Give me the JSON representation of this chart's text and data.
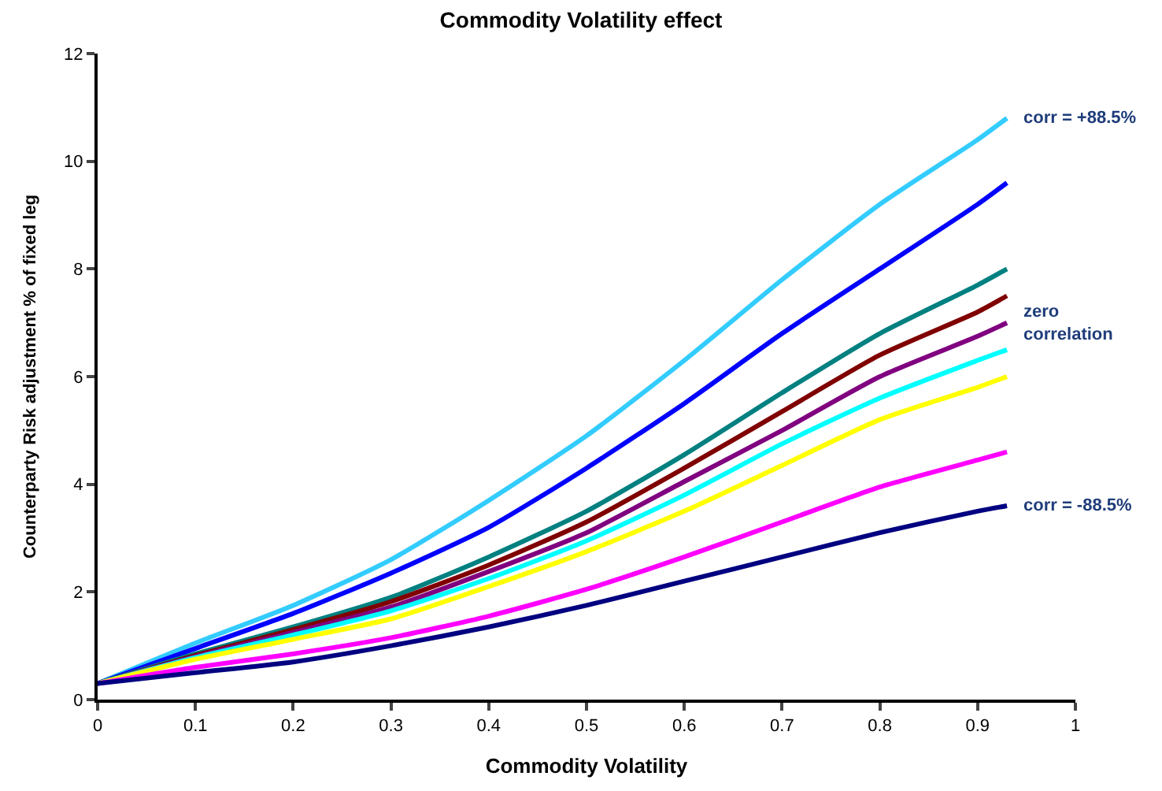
{
  "chart_data": {
    "type": "line",
    "title": "Commodity Volatility effect",
    "xlabel": "Commodity Volatility",
    "ylabel": "Counterparty Risk adjustment % of fixed leg",
    "x": [
      0,
      0.1,
      0.2,
      0.3,
      0.4,
      0.5,
      0.6,
      0.7,
      0.8,
      0.9,
      0.93
    ],
    "series": [
      {
        "name": "corr = +88.5%",
        "color": "#33ccff",
        "values": [
          0.3,
          1.05,
          1.75,
          2.6,
          3.7,
          4.9,
          6.3,
          7.8,
          9.2,
          10.4,
          10.8
        ]
      },
      {
        "color": "#0000ff",
        "values": [
          0.3,
          0.95,
          1.6,
          2.35,
          3.2,
          4.3,
          5.5,
          6.8,
          8.0,
          9.2,
          9.6
        ]
      },
      {
        "color": "#008080",
        "values": [
          0.3,
          0.85,
          1.35,
          1.9,
          2.65,
          3.5,
          4.55,
          5.7,
          6.8,
          7.7,
          8.0
        ]
      },
      {
        "color": "#800000",
        "values": [
          0.3,
          0.82,
          1.3,
          1.82,
          2.5,
          3.3,
          4.3,
          5.35,
          6.4,
          7.2,
          7.5
        ]
      },
      {
        "name": "zero\ncorrelation",
        "color": "#800080",
        "values": [
          0.3,
          0.8,
          1.25,
          1.72,
          2.38,
          3.1,
          4.05,
          5.0,
          6.0,
          6.75,
          7.0
        ]
      },
      {
        "color": "#00ffff",
        "values": [
          0.3,
          0.78,
          1.2,
          1.65,
          2.25,
          2.95,
          3.8,
          4.75,
          5.6,
          6.3,
          6.5
        ]
      },
      {
        "color": "#ffff00",
        "values": [
          0.3,
          0.75,
          1.12,
          1.5,
          2.1,
          2.75,
          3.5,
          4.35,
          5.2,
          5.8,
          6.0
        ]
      },
      {
        "color": "#ff00ff",
        "values": [
          0.3,
          0.6,
          0.85,
          1.15,
          1.55,
          2.05,
          2.65,
          3.3,
          3.95,
          4.45,
          4.6
        ]
      },
      {
        "name": "corr = -88.5%",
        "color": "#000080",
        "values": [
          0.3,
          0.5,
          0.7,
          1.0,
          1.35,
          1.75,
          2.2,
          2.65,
          3.1,
          3.5,
          3.6
        ]
      }
    ],
    "xlim": [
      0,
      1
    ],
    "xticks": [
      0,
      0.1,
      0.2,
      0.3,
      0.4,
      0.5,
      0.6,
      0.7,
      0.8,
      0.9,
      1
    ],
    "ylim": [
      0,
      12
    ],
    "yticks": [
      0,
      2,
      4,
      6,
      8,
      10,
      12
    ],
    "marker": "none",
    "line_style": "solid"
  }
}
